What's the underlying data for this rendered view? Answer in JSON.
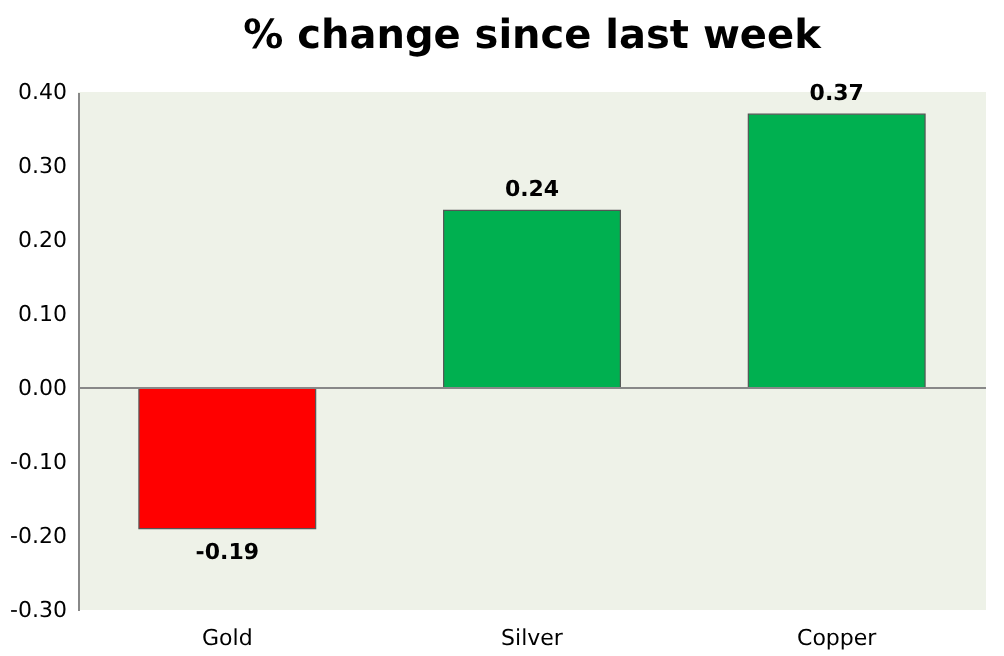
{
  "chart_data": {
    "type": "bar",
    "title": "% change since last week",
    "categories": [
      "Gold",
      "Silver",
      "Copper"
    ],
    "values": [
      -0.19,
      0.24,
      0.37
    ],
    "colors": [
      "#ff0000",
      "#00b050",
      "#00b050"
    ],
    "ylim": [
      -0.3,
      0.4
    ],
    "yticks": [
      {
        "value": -0.3,
        "label": "-0.30"
      },
      {
        "value": -0.2,
        "label": "-0.20"
      },
      {
        "value": -0.1,
        "label": "-0.10"
      },
      {
        "value": 0,
        "label": "0.00"
      },
      {
        "value": 0.1,
        "label": "0.10"
      },
      {
        "value": 0.2,
        "label": "0.20"
      },
      {
        "value": 0.3,
        "label": "0.30"
      },
      {
        "value": 0.4,
        "label": "0.40"
      }
    ],
    "data_labels": true
  }
}
